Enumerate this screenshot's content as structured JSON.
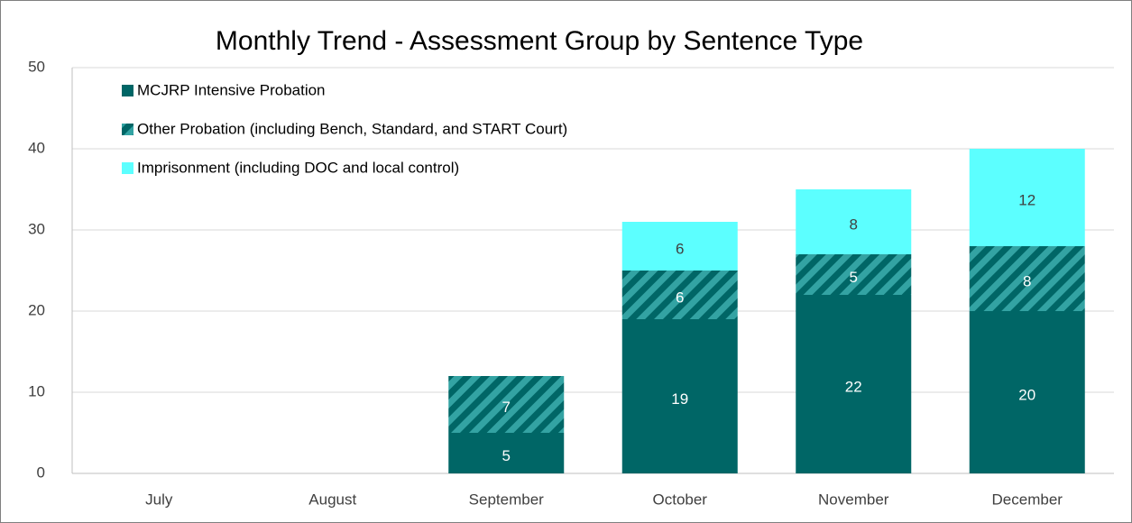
{
  "chart_data": {
    "type": "stacked_bar",
    "title": "Monthly Trend - Assessment Group by Sentence Type",
    "categories": [
      "July",
      "August",
      "September",
      "October",
      "November",
      "December"
    ],
    "series": [
      {
        "name": "MCJRP Intensive Probation",
        "color": "#006666",
        "values": [
          null,
          null,
          5,
          19,
          22,
          20
        ]
      },
      {
        "name": "Other Probation (including Bench, Standard, and START Court)",
        "color": "#33a3a3",
        "pattern": "diagonal-stripes",
        "values": [
          null,
          null,
          7,
          6,
          5,
          8
        ]
      },
      {
        "name": "Imprisonment (including DOC and local control)",
        "color": "#5cffff",
        "values": [
          null,
          null,
          null,
          6,
          8,
          12
        ]
      }
    ],
    "ylim": [
      0,
      50
    ],
    "yticks": [
      0,
      10,
      20,
      30,
      40,
      50
    ],
    "grid": true,
    "legend": "top-left"
  }
}
